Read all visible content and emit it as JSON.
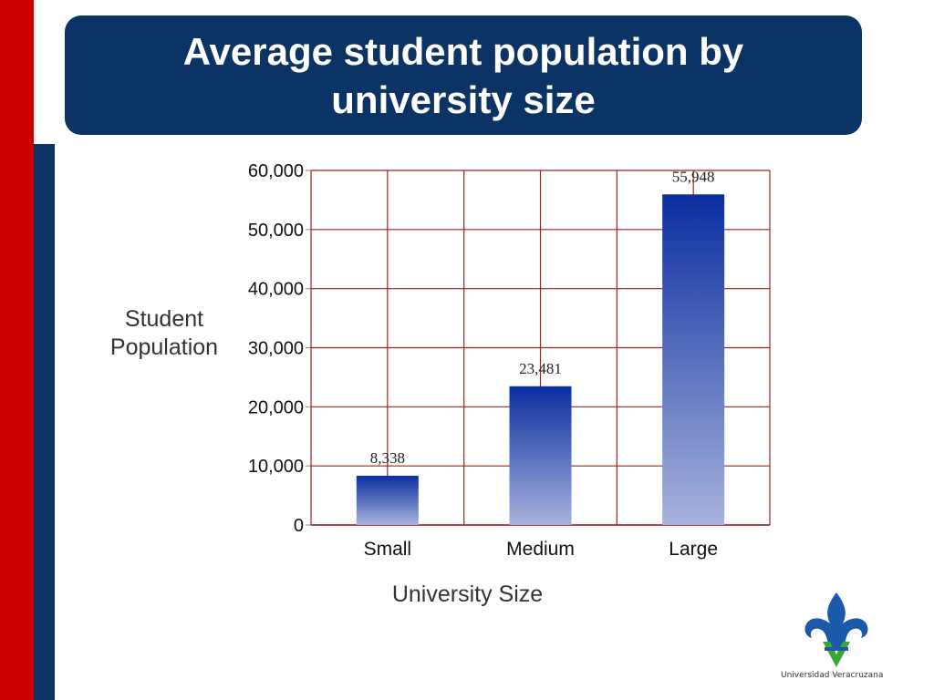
{
  "slide": {
    "title": "Average student population by\nuniversity size",
    "logo_caption": "Universidad Veracruzana"
  },
  "colors": {
    "red_stripe": "#cc0000",
    "navy": "#0b3464",
    "grid": "#9b2323",
    "bar_top": "#0a2ea0",
    "bar_bottom": "#a7b2dc",
    "logo_blue": "#1a5aa8",
    "logo_green": "#3aa635"
  },
  "chart_data": {
    "type": "bar",
    "categories": [
      "Small",
      "Medium",
      "Large"
    ],
    "values": [
      8338,
      23481,
      55948
    ],
    "data_labels": [
      "8,338",
      "23,481",
      "55,948"
    ],
    "title": "",
    "xlabel": "University Size",
    "ylabel": "Student\nPopulation",
    "ylim": [
      0,
      60000
    ],
    "yticks": [
      0,
      10000,
      20000,
      30000,
      40000,
      50000,
      60000
    ],
    "ytick_labels": [
      "0",
      "10,000",
      "20,000",
      "30,000",
      "40,000",
      "50,000",
      "60,000"
    ],
    "grid": true,
    "legend": "none"
  }
}
